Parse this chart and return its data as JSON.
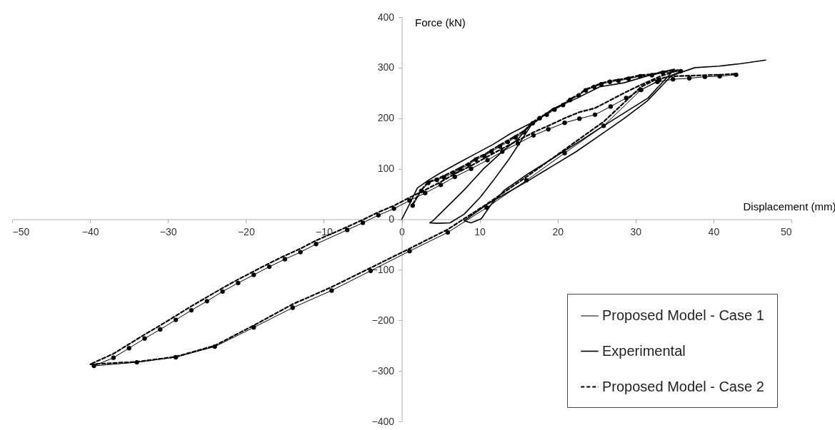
{
  "chart_data": {
    "type": "line",
    "xlabel": "Displacement (mm)",
    "ylabel": "Force (kN)",
    "xlim": [
      -50,
      50
    ],
    "ylim": [
      -400,
      400
    ],
    "xticks": [
      -50,
      -40,
      -30,
      -20,
      -10,
      0,
      10,
      20,
      30,
      40,
      50
    ],
    "yticks": [
      -400,
      -300,
      -200,
      -100,
      0,
      100,
      200,
      300,
      400
    ],
    "grid": false,
    "legend": "bottom right",
    "series": [
      {
        "name": "Proposed Model - Case 1",
        "color": "#000000",
        "marker": "circle",
        "line_style": "solid",
        "x": [
          1.4,
          2.5,
          3.4,
          4.5,
          5.4,
          6.6,
          7.5,
          8.6,
          9.5,
          10.6,
          11.5,
          12.6,
          13.6,
          14.6,
          15.7,
          16.8,
          17.7,
          18.6,
          19.6,
          20.7,
          21.6,
          22.7,
          23.6,
          24.7,
          25.6,
          26.7,
          27.8,
          29.1,
          30.6,
          32.1,
          33.5,
          35.8,
          33,
          30.7,
          28.8,
          26.8,
          24.8,
          22.8,
          20.9,
          18.8,
          16.9,
          14.9,
          12.9,
          11,
          8.9,
          6.8,
          5,
          3,
          1,
          -1,
          -3,
          -5,
          -7,
          -11,
          -13,
          -15,
          -17,
          -19,
          -21,
          -23,
          -25,
          -27,
          -29,
          -31,
          -33,
          -35,
          -37,
          -39.5,
          -34,
          -29,
          -24,
          -19,
          -14,
          -9,
          -4,
          1,
          5.9,
          10.9,
          16,
          20.9,
          25.9,
          30.7,
          32.8,
          34.8,
          36.9,
          38.9,
          40.8,
          42.9
        ],
        "values": [
          27,
          56,
          72,
          78,
          83,
          92,
          99,
          108,
          118,
          125,
          134,
          144,
          153,
          162,
          172,
          190,
          200,
          207,
          217,
          226,
          236,
          245,
          255,
          262,
          267,
          272,
          274,
          278,
          283,
          285,
          290,
          293,
          275,
          256,
          240,
          223,
          207,
          199,
          191,
          178,
          166,
          150,
          134,
          117,
          100,
          84,
          68,
          52,
          37,
          21,
          8,
          -7,
          -21,
          -49,
          -65,
          -79,
          -94,
          -110,
          -126,
          -143,
          -162,
          -180,
          -199,
          -218,
          -236,
          -255,
          -274,
          -290,
          -283,
          -273,
          -252,
          -214,
          -175,
          -141,
          -102,
          -63,
          -26,
          23,
          77,
          131,
          185,
          256,
          272,
          277,
          279,
          282,
          283,
          286
        ]
      },
      {
        "name": "Experimental",
        "color": "#000000",
        "marker": "none",
        "line_style": "solid",
        "x": [
          0,
          1,
          2,
          3.4,
          5,
          7.1,
          9.5,
          11.7,
          14,
          16.3,
          16.6,
          15,
          13.2,
          10.5,
          8,
          5.5,
          4,
          3.6,
          4.5,
          6.2,
          8,
          10.1,
          12,
          13.8,
          15.5,
          16.6,
          19.3,
          22.4,
          25.4,
          28.5,
          31.6,
          34.6,
          35,
          34,
          31.6,
          28.5,
          25.4,
          22.4,
          19.3,
          16.2,
          13.2,
          11.5,
          10.2,
          8.9,
          8,
          11,
          13.7,
          16.3,
          19.4,
          22.4,
          25.5,
          28.5,
          31.5,
          34.6,
          37.6,
          40.7,
          43.5,
          46.7
        ],
        "values": [
          0,
          30,
          62,
          77,
          92,
          110,
          130,
          148,
          170,
          188,
          190,
          160,
          138,
          100,
          58,
          20,
          -3,
          -7,
          -8,
          -7,
          10,
          44,
          82,
          120,
          160,
          186,
          218,
          239,
          262,
          270,
          284,
          296,
          297,
          280,
          240,
          210,
          180,
          150,
          120,
          90,
          58,
          30,
          1,
          -7,
          -3,
          30,
          54,
          77,
          106,
          134,
          167,
          199,
          234,
          284,
          300,
          303,
          308,
          315
        ]
      },
      {
        "name": "Proposed Model - Case 2",
        "color": "#000000",
        "marker": "none",
        "line_style": "dashed",
        "x": [
          1.4,
          2.5,
          3.4,
          4.5,
          5.4,
          6.6,
          7.5,
          8.6,
          9.5,
          10.6,
          11.5,
          12.6,
          13.6,
          14.6,
          15.7,
          16.8,
          17.7,
          18.6,
          19.6,
          20.7,
          21.6,
          22.7,
          23.6,
          24.7,
          25.6,
          26.7,
          27.8,
          29.1,
          30.6,
          32.1,
          33.5,
          35.5,
          33,
          30.7,
          28.8,
          26.8,
          24.8,
          22.8,
          20.9,
          18.8,
          16.9,
          14.9,
          12.9,
          11,
          8.9,
          6.8,
          5,
          3,
          1,
          -1,
          -3,
          -5,
          -7,
          -11,
          -13,
          -15,
          -17,
          -19,
          -21,
          -23,
          -25,
          -27,
          -29,
          -31,
          -33,
          -35,
          -37,
          -40,
          -34,
          -29,
          -24,
          -19,
          -14,
          -9,
          -4,
          1,
          5.9,
          10.9,
          16,
          20.9,
          25.9,
          30.7,
          32.8,
          34.8,
          36.9,
          38.9,
          40.8,
          43
        ],
        "values": [
          30,
          58,
          74,
          80,
          86,
          95,
          102,
          111,
          121,
          128,
          137,
          147,
          156,
          165,
          175,
          192,
          202,
          209,
          219,
          228,
          238,
          247,
          257,
          264,
          269,
          274,
          276,
          280,
          285,
          287,
          292,
          295,
          282,
          266,
          252,
          236,
          220,
          212,
          200,
          185,
          172,
          156,
          140,
          124,
          106,
          90,
          74,
          58,
          43,
          27,
          14,
          -1,
          -15,
          -42,
          -58,
          -72,
          -87,
          -103,
          -119,
          -136,
          -154,
          -172,
          -191,
          -210,
          -228,
          -247,
          -266,
          -287,
          -282,
          -272,
          -250,
          -210,
          -168,
          -134,
          -96,
          -58,
          -20,
          30,
          84,
          138,
          193,
          262,
          278,
          283,
          284,
          285,
          286,
          288
        ]
      }
    ]
  }
}
